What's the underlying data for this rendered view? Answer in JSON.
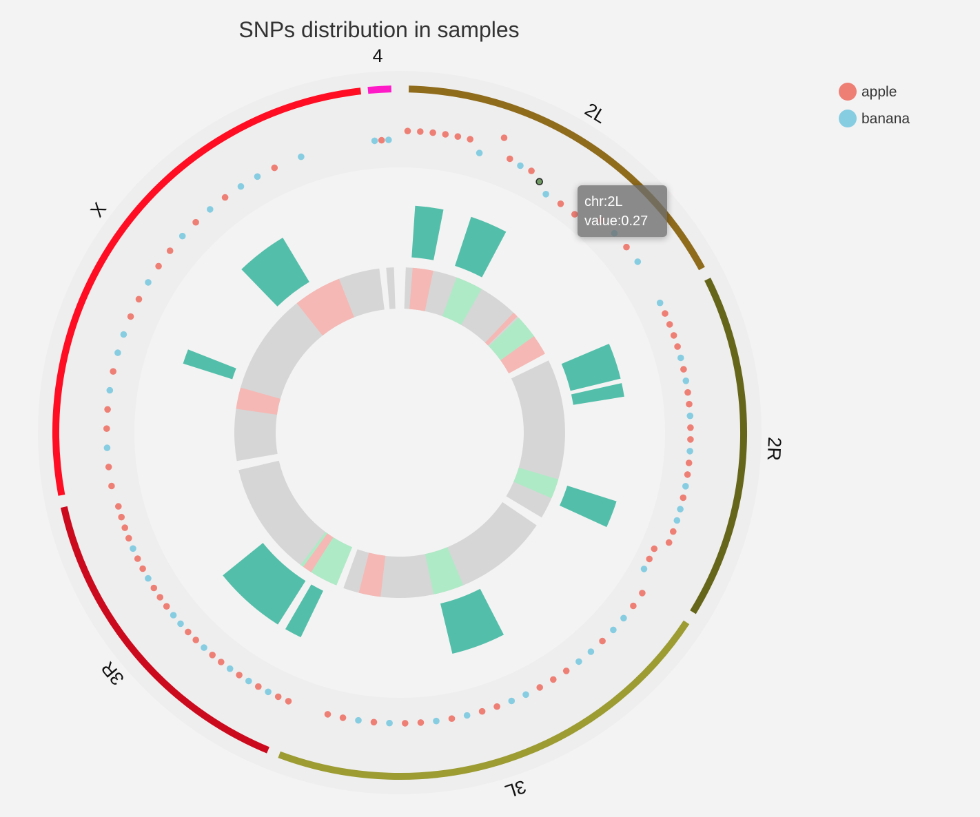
{
  "chart_data": {
    "type": "circos",
    "title": "SNPs distribution in samples",
    "chromosomes": [
      {
        "name": "2L",
        "color": "#8f6b1c"
      },
      {
        "name": "2R",
        "color": "#66661b"
      },
      {
        "name": "3L",
        "color": "#9c9c33"
      },
      {
        "name": "3R",
        "color": "#cc0a1e"
      },
      {
        "name": "X",
        "color": "#ff0d22"
      },
      {
        "name": "4",
        "color": "#ff1ac8"
      }
    ],
    "series": [
      {
        "name": "apple",
        "color": "#ee7f75"
      },
      {
        "name": "banana",
        "color": "#86cde2"
      }
    ],
    "snps": [
      {
        "chr": "2L",
        "pos": 0.0,
        "value": 0.6,
        "sample": "apple"
      },
      {
        "chr": "2L",
        "pos": 0.04,
        "value": 0.6,
        "sample": "apple"
      },
      {
        "chr": "2L",
        "pos": 0.08,
        "value": 0.6,
        "sample": "apple"
      },
      {
        "chr": "2L",
        "pos": 0.12,
        "value": 0.6,
        "sample": "apple"
      },
      {
        "chr": "2L",
        "pos": 0.16,
        "value": 0.6,
        "sample": "apple"
      },
      {
        "chr": "2L",
        "pos": 0.2,
        "value": 0.6,
        "sample": "apple"
      },
      {
        "chr": "2L",
        "pos": 0.24,
        "value": 0.35,
        "sample": "banana"
      },
      {
        "chr": "2L",
        "pos": 0.3,
        "value": 0.85,
        "sample": "apple"
      },
      {
        "chr": "2L",
        "pos": 0.34,
        "value": 0.45,
        "sample": "apple"
      },
      {
        "chr": "2L",
        "pos": 0.38,
        "value": 0.4,
        "sample": "banana"
      },
      {
        "chr": "2L",
        "pos": 0.42,
        "value": 0.4,
        "sample": "apple"
      },
      {
        "chr": "2L",
        "pos": 0.46,
        "value": 0.27,
        "sample": "banana"
      },
      {
        "chr": "2L",
        "pos": 0.5,
        "value": 0.1,
        "sample": "banana"
      },
      {
        "chr": "2L",
        "pos": 0.56,
        "value": 0.1,
        "sample": "apple"
      },
      {
        "chr": "2L",
        "pos": 0.62,
        "value": 0.1,
        "sample": "apple"
      },
      {
        "chr": "2L",
        "pos": 0.7,
        "value": 0.4,
        "sample": "apple"
      },
      {
        "chr": "2L",
        "pos": 0.76,
        "value": 0.4,
        "sample": "banana"
      },
      {
        "chr": "2L",
        "pos": 0.82,
        "value": 0.4,
        "sample": "apple"
      },
      {
        "chr": "2L",
        "pos": 0.88,
        "value": 0.4,
        "sample": "banana"
      },
      {
        "chr": "2R",
        "pos": 0.0,
        "value": 0.35,
        "sample": "banana"
      },
      {
        "chr": "2R",
        "pos": 0.04,
        "value": 0.35,
        "sample": "apple"
      },
      {
        "chr": "2R",
        "pos": 0.08,
        "value": 0.35,
        "sample": "apple"
      },
      {
        "chr": "2R",
        "pos": 0.12,
        "value": 0.35,
        "sample": "apple"
      },
      {
        "chr": "2R",
        "pos": 0.16,
        "value": 0.35,
        "sample": "apple"
      },
      {
        "chr": "2R",
        "pos": 0.2,
        "value": 0.35,
        "sample": "banana"
      },
      {
        "chr": "2R",
        "pos": 0.24,
        "value": 0.35,
        "sample": "apple"
      },
      {
        "chr": "2R",
        "pos": 0.28,
        "value": 0.35,
        "sample": "banana"
      },
      {
        "chr": "2R",
        "pos": 0.32,
        "value": 0.35,
        "sample": "apple"
      },
      {
        "chr": "2R",
        "pos": 0.36,
        "value": 0.35,
        "sample": "apple"
      },
      {
        "chr": "2R",
        "pos": 0.4,
        "value": 0.35,
        "sample": "banana"
      },
      {
        "chr": "2R",
        "pos": 0.44,
        "value": 0.35,
        "sample": "apple"
      },
      {
        "chr": "2R",
        "pos": 0.48,
        "value": 0.35,
        "sample": "apple"
      },
      {
        "chr": "2R",
        "pos": 0.52,
        "value": 0.35,
        "sample": "banana"
      },
      {
        "chr": "2R",
        "pos": 0.56,
        "value": 0.35,
        "sample": "apple"
      },
      {
        "chr": "2R",
        "pos": 0.6,
        "value": 0.35,
        "sample": "apple"
      },
      {
        "chr": "2R",
        "pos": 0.64,
        "value": 0.35,
        "sample": "banana"
      },
      {
        "chr": "2R",
        "pos": 0.68,
        "value": 0.35,
        "sample": "apple"
      },
      {
        "chr": "2R",
        "pos": 0.72,
        "value": 0.35,
        "sample": "banana"
      },
      {
        "chr": "2R",
        "pos": 0.76,
        "value": 0.35,
        "sample": "banana"
      },
      {
        "chr": "2R",
        "pos": 0.8,
        "value": 0.35,
        "sample": "apple"
      },
      {
        "chr": "2R",
        "pos": 0.84,
        "value": 0.35,
        "sample": "apple"
      },
      {
        "chr": "2R",
        "pos": 0.88,
        "value": 0.1,
        "sample": "apple"
      },
      {
        "chr": "2R",
        "pos": 0.92,
        "value": 0.1,
        "sample": "apple"
      },
      {
        "chr": "2R",
        "pos": 0.96,
        "value": 0.1,
        "sample": "banana"
      },
      {
        "chr": "3L",
        "pos": 0.0,
        "value": 0.35,
        "sample": "apple"
      },
      {
        "chr": "3L",
        "pos": 0.04,
        "value": 0.35,
        "sample": "apple"
      },
      {
        "chr": "3L",
        "pos": 0.08,
        "value": 0.35,
        "sample": "banana"
      },
      {
        "chr": "3L",
        "pos": 0.12,
        "value": 0.35,
        "sample": "banana"
      },
      {
        "chr": "3L",
        "pos": 0.16,
        "value": 0.35,
        "sample": "apple"
      },
      {
        "chr": "3L",
        "pos": 0.2,
        "value": 0.35,
        "sample": "banana"
      },
      {
        "chr": "3L",
        "pos": 0.24,
        "value": 0.35,
        "sample": "banana"
      },
      {
        "chr": "3L",
        "pos": 0.28,
        "value": 0.35,
        "sample": "apple"
      },
      {
        "chr": "3L",
        "pos": 0.32,
        "value": 0.35,
        "sample": "apple"
      },
      {
        "chr": "3L",
        "pos": 0.36,
        "value": 0.35,
        "sample": "apple"
      },
      {
        "chr": "3L",
        "pos": 0.4,
        "value": 0.35,
        "sample": "banana"
      },
      {
        "chr": "3L",
        "pos": 0.44,
        "value": 0.35,
        "sample": "banana"
      },
      {
        "chr": "3L",
        "pos": 0.48,
        "value": 0.35,
        "sample": "apple"
      },
      {
        "chr": "3L",
        "pos": 0.52,
        "value": 0.35,
        "sample": "apple"
      },
      {
        "chr": "3L",
        "pos": 0.56,
        "value": 0.35,
        "sample": "banana"
      },
      {
        "chr": "3L",
        "pos": 0.6,
        "value": 0.35,
        "sample": "apple"
      },
      {
        "chr": "3L",
        "pos": 0.64,
        "value": 0.35,
        "sample": "banana"
      },
      {
        "chr": "3L",
        "pos": 0.68,
        "value": 0.35,
        "sample": "apple"
      },
      {
        "chr": "3L",
        "pos": 0.72,
        "value": 0.35,
        "sample": "apple"
      },
      {
        "chr": "3L",
        "pos": 0.76,
        "value": 0.35,
        "sample": "banana"
      },
      {
        "chr": "3L",
        "pos": 0.8,
        "value": 0.35,
        "sample": "apple"
      },
      {
        "chr": "3L",
        "pos": 0.84,
        "value": 0.35,
        "sample": "banana"
      },
      {
        "chr": "3L",
        "pos": 0.88,
        "value": 0.35,
        "sample": "apple"
      },
      {
        "chr": "3L",
        "pos": 0.92,
        "value": 0.35,
        "sample": "apple"
      },
      {
        "chr": "3R",
        "pos": 0.0,
        "value": 0.35,
        "sample": "apple"
      },
      {
        "chr": "3R",
        "pos": 0.04,
        "value": 0.35,
        "sample": "apple"
      },
      {
        "chr": "3R",
        "pos": 0.08,
        "value": 0.35,
        "sample": "banana"
      },
      {
        "chr": "3R",
        "pos": 0.12,
        "value": 0.35,
        "sample": "apple"
      },
      {
        "chr": "3R",
        "pos": 0.16,
        "value": 0.35,
        "sample": "banana"
      },
      {
        "chr": "3R",
        "pos": 0.2,
        "value": 0.35,
        "sample": "apple"
      },
      {
        "chr": "3R",
        "pos": 0.24,
        "value": 0.35,
        "sample": "banana"
      },
      {
        "chr": "3R",
        "pos": 0.28,
        "value": 0.35,
        "sample": "apple"
      },
      {
        "chr": "3R",
        "pos": 0.32,
        "value": 0.35,
        "sample": "apple"
      },
      {
        "chr": "3R",
        "pos": 0.36,
        "value": 0.35,
        "sample": "banana"
      },
      {
        "chr": "3R",
        "pos": 0.4,
        "value": 0.35,
        "sample": "apple"
      },
      {
        "chr": "3R",
        "pos": 0.44,
        "value": 0.35,
        "sample": "apple"
      },
      {
        "chr": "3R",
        "pos": 0.48,
        "value": 0.35,
        "sample": "banana"
      },
      {
        "chr": "3R",
        "pos": 0.52,
        "value": 0.35,
        "sample": "banana"
      },
      {
        "chr": "3R",
        "pos": 0.56,
        "value": 0.35,
        "sample": "apple"
      },
      {
        "chr": "3R",
        "pos": 0.6,
        "value": 0.35,
        "sample": "apple"
      },
      {
        "chr": "3R",
        "pos": 0.64,
        "value": 0.35,
        "sample": "apple"
      },
      {
        "chr": "3R",
        "pos": 0.68,
        "value": 0.35,
        "sample": "banana"
      },
      {
        "chr": "3R",
        "pos": 0.72,
        "value": 0.35,
        "sample": "apple"
      },
      {
        "chr": "3R",
        "pos": 0.76,
        "value": 0.35,
        "sample": "apple"
      },
      {
        "chr": "3R",
        "pos": 0.8,
        "value": 0.35,
        "sample": "banana"
      },
      {
        "chr": "3R",
        "pos": 0.84,
        "value": 0.35,
        "sample": "apple"
      },
      {
        "chr": "3R",
        "pos": 0.88,
        "value": 0.35,
        "sample": "apple"
      },
      {
        "chr": "3R",
        "pos": 0.92,
        "value": 0.35,
        "sample": "apple"
      },
      {
        "chr": "3R",
        "pos": 0.96,
        "value": 0.35,
        "sample": "apple"
      },
      {
        "chr": "X",
        "pos": 0.0,
        "value": 0.4,
        "sample": "apple"
      },
      {
        "chr": "X",
        "pos": 0.04,
        "value": 0.4,
        "sample": "apple"
      },
      {
        "chr": "X",
        "pos": 0.08,
        "value": 0.4,
        "sample": "banana"
      },
      {
        "chr": "X",
        "pos": 0.12,
        "value": 0.4,
        "sample": "apple"
      },
      {
        "chr": "X",
        "pos": 0.16,
        "value": 0.4,
        "sample": "apple"
      },
      {
        "chr": "X",
        "pos": 0.2,
        "value": 0.4,
        "sample": "banana"
      },
      {
        "chr": "X",
        "pos": 0.24,
        "value": 0.4,
        "sample": "apple"
      },
      {
        "chr": "X",
        "pos": 0.28,
        "value": 0.4,
        "sample": "banana"
      },
      {
        "chr": "X",
        "pos": 0.32,
        "value": 0.4,
        "sample": "banana"
      },
      {
        "chr": "X",
        "pos": 0.36,
        "value": 0.4,
        "sample": "apple"
      },
      {
        "chr": "X",
        "pos": 0.4,
        "value": 0.4,
        "sample": "apple"
      },
      {
        "chr": "X",
        "pos": 0.44,
        "value": 0.4,
        "sample": "banana"
      },
      {
        "chr": "X",
        "pos": 0.48,
        "value": 0.4,
        "sample": "apple"
      },
      {
        "chr": "X",
        "pos": 0.52,
        "value": 0.4,
        "sample": "apple"
      },
      {
        "chr": "X",
        "pos": 0.56,
        "value": 0.4,
        "sample": "banana"
      },
      {
        "chr": "X",
        "pos": 0.6,
        "value": 0.4,
        "sample": "apple"
      },
      {
        "chr": "X",
        "pos": 0.64,
        "value": 0.4,
        "sample": "banana"
      },
      {
        "chr": "X",
        "pos": 0.68,
        "value": 0.4,
        "sample": "apple"
      },
      {
        "chr": "X",
        "pos": 0.72,
        "value": 0.4,
        "sample": "banana"
      },
      {
        "chr": "X",
        "pos": 0.76,
        "value": 0.4,
        "sample": "banana"
      },
      {
        "chr": "X",
        "pos": 0.8,
        "value": 0.4,
        "sample": "apple"
      },
      {
        "chr": "X",
        "pos": 0.86,
        "value": 0.4,
        "sample": "banana"
      },
      {
        "chr": "4",
        "pos": 0.1,
        "value": 0.4,
        "sample": "banana"
      },
      {
        "chr": "4",
        "pos": 0.45,
        "value": 0.4,
        "sample": "apple"
      },
      {
        "chr": "4",
        "pos": 0.8,
        "value": 0.4,
        "sample": "banana"
      }
    ],
    "highlights": [
      {
        "chr": "2L",
        "start": 0.04,
        "end": 0.16
      },
      {
        "chr": "2L",
        "start": 0.28,
        "end": 0.44
      },
      {
        "chr": "2R",
        "start": 0.06,
        "end": 0.22
      },
      {
        "chr": "2R",
        "start": 0.24,
        "end": 0.3
      },
      {
        "chr": "2R",
        "start": 0.76,
        "end": 0.88
      },
      {
        "chr": "3L",
        "start": 0.38,
        "end": 0.56
      },
      {
        "chr": "3R",
        "start": 0.06,
        "end": 0.14
      },
      {
        "chr": "3R",
        "start": 0.18,
        "end": 0.52
      },
      {
        "chr": "X",
        "start": 0.3,
        "end": 0.34
      },
      {
        "chr": "X",
        "start": 0.6,
        "end": 0.74
      }
    ],
    "cytobands": [
      {
        "chr": "2L",
        "start": 0.05,
        "end": 0.17,
        "kind": "red"
      },
      {
        "chr": "2L",
        "start": 0.31,
        "end": 0.47,
        "kind": "green"
      },
      {
        "chr": "2L",
        "start": 0.7,
        "end": 0.73,
        "kind": "red"
      },
      {
        "chr": "2L",
        "start": 0.74,
        "end": 0.88,
        "kind": "green"
      },
      {
        "chr": "2L",
        "start": 0.88,
        "end": 1.0,
        "kind": "red"
      },
      {
        "chr": "2R",
        "start": 0.74,
        "end": 0.86,
        "kind": "green"
      },
      {
        "chr": "3L",
        "start": 0.44,
        "end": 0.58,
        "kind": "green"
      },
      {
        "chr": "3L",
        "start": 0.82,
        "end": 0.92,
        "kind": "red"
      },
      {
        "chr": "3R",
        "start": 0.0,
        "end": 0.18,
        "kind": "green"
      },
      {
        "chr": "3R",
        "start": 0.18,
        "end": 0.24,
        "kind": "red"
      },
      {
        "chr": "3R",
        "start": 0.24,
        "end": 0.26,
        "kind": "green"
      },
      {
        "chr": "X",
        "start": 0.2,
        "end": 0.28,
        "kind": "red"
      },
      {
        "chr": "X",
        "start": 0.66,
        "end": 0.84,
        "kind": "red"
      }
    ],
    "tooltip": {
      "line1": "chr:2L",
      "line2": "value:0.27"
    },
    "legend_position": "top-right"
  }
}
